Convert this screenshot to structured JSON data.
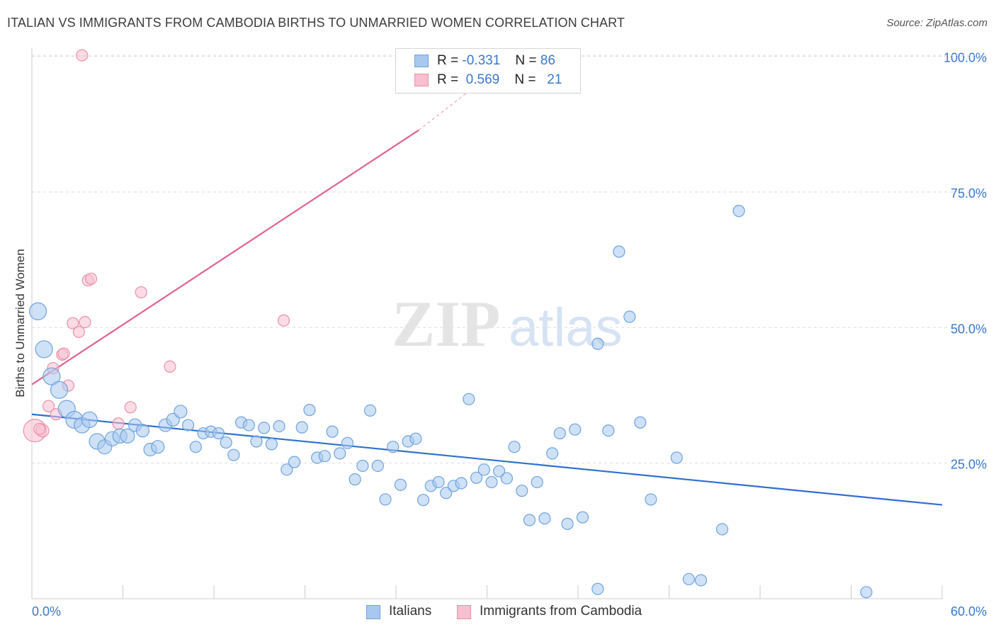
{
  "title": "ITALIAN VS IMMIGRANTS FROM CAMBODIA BIRTHS TO UNMARRIED WOMEN CORRELATION CHART",
  "source": "Source: ZipAtlas.com",
  "legend_top": [
    {
      "r_label": "R =",
      "r_value": "-0.331",
      "n_label": "N =",
      "n_value": "86"
    },
    {
      "r_label": "R =",
      "r_value": "0.569",
      "n_label": "N =",
      "n_value": "21"
    }
  ],
  "legend_bottom": [
    "Italians",
    "Immigrants from Cambodia"
  ],
  "colors": {
    "italians_fill": "#a8c8ef",
    "italians_stroke": "#6fa3dd",
    "italians_line": "#2f6fd0",
    "cambodia_fill": "#f7bfd0",
    "cambodia_stroke": "#eb8fab",
    "cambodia_line": "#e0638a",
    "axis_text": "#3a78c9",
    "grid": "#dddddd"
  },
  "chart_data": {
    "type": "scatter",
    "title": "ITALIAN VS IMMIGRANTS FROM CAMBODIA BIRTHS TO UNMARRIED WOMEN CORRELATION CHART",
    "xlabel": "",
    "ylabel": "Births to Unmarried Women",
    "xlim": [
      0,
      60
    ],
    "ylim": [
      0,
      102
    ],
    "x_tick_labels": [
      "0.0%",
      "60.0%"
    ],
    "y_ticks": [
      25,
      50,
      75,
      100
    ],
    "y_tick_labels": [
      "25.0%",
      "50.0%",
      "75.0%",
      "100.0%"
    ],
    "grid": true,
    "legend_position": "top-center",
    "series": [
      {
        "name": "Italians",
        "trend": {
          "x0": 0,
          "y0": 34.0,
          "x1": 60,
          "y1": 17.3
        },
        "points": [
          [
            0.4,
            53.0,
            12
          ],
          [
            0.8,
            46.0,
            12
          ],
          [
            1.3,
            41.0,
            12
          ],
          [
            1.8,
            38.5,
            12
          ],
          [
            2.3,
            35.0,
            12
          ],
          [
            2.8,
            33.0,
            12
          ],
          [
            3.3,
            32.0,
            11
          ],
          [
            3.8,
            33.0,
            11
          ],
          [
            4.3,
            29.0,
            11
          ],
          [
            4.8,
            28.0,
            10
          ],
          [
            5.3,
            29.5,
            10
          ],
          [
            5.8,
            30.0,
            10
          ],
          [
            6.3,
            30.0,
            10
          ],
          [
            6.8,
            32.0,
            9
          ],
          [
            7.3,
            31.0,
            9
          ],
          [
            7.8,
            27.5,
            9
          ],
          [
            8.3,
            28.0,
            9
          ],
          [
            8.8,
            32.0,
            9
          ],
          [
            9.3,
            33.0,
            9
          ],
          [
            9.8,
            34.5,
            9
          ],
          [
            10.3,
            32.0,
            8
          ],
          [
            10.8,
            28.0,
            8
          ],
          [
            11.3,
            30.5,
            8
          ],
          [
            11.8,
            30.8,
            8
          ],
          [
            12.3,
            30.5,
            8
          ],
          [
            12.8,
            28.8,
            8
          ],
          [
            13.3,
            26.5,
            8
          ],
          [
            13.8,
            32.5,
            8
          ],
          [
            14.3,
            32.0,
            8
          ],
          [
            14.8,
            29.0,
            8
          ],
          [
            15.3,
            31.5,
            8
          ],
          [
            15.8,
            28.5,
            8
          ],
          [
            16.3,
            31.8,
            8
          ],
          [
            16.8,
            23.8,
            8
          ],
          [
            17.3,
            25.2,
            8
          ],
          [
            17.8,
            31.6,
            8
          ],
          [
            18.3,
            34.8,
            8
          ],
          [
            18.8,
            26.0,
            8
          ],
          [
            19.3,
            26.3,
            8
          ],
          [
            19.8,
            30.8,
            8
          ],
          [
            20.3,
            26.8,
            8
          ],
          [
            20.8,
            28.7,
            8
          ],
          [
            21.3,
            22.0,
            8
          ],
          [
            21.8,
            24.5,
            8
          ],
          [
            22.3,
            34.7,
            8
          ],
          [
            22.8,
            24.5,
            8
          ],
          [
            23.3,
            18.3,
            8
          ],
          [
            23.8,
            28.0,
            8
          ],
          [
            24.3,
            21.0,
            8
          ],
          [
            24.8,
            29.0,
            8
          ],
          [
            25.3,
            29.5,
            8
          ],
          [
            25.8,
            18.2,
            8
          ],
          [
            26.3,
            20.8,
            8
          ],
          [
            26.8,
            21.5,
            8
          ],
          [
            27.3,
            19.5,
            8
          ],
          [
            27.8,
            20.8,
            8
          ],
          [
            28.3,
            21.3,
            8
          ],
          [
            28.8,
            36.8,
            8
          ],
          [
            29.3,
            22.3,
            8
          ],
          [
            29.8,
            23.8,
            8
          ],
          [
            30.3,
            21.5,
            8
          ],
          [
            30.8,
            23.5,
            8
          ],
          [
            31.3,
            22.2,
            8
          ],
          [
            31.8,
            28.0,
            8
          ],
          [
            32.3,
            19.9,
            8
          ],
          [
            32.8,
            14.5,
            8
          ],
          [
            33.3,
            21.5,
            8
          ],
          [
            33.8,
            14.8,
            8
          ],
          [
            34.3,
            26.8,
            8
          ],
          [
            34.8,
            30.5,
            8
          ],
          [
            35.3,
            13.8,
            8
          ],
          [
            35.8,
            31.2,
            8
          ],
          [
            36.3,
            15.0,
            8
          ],
          [
            37.3,
            1.8,
            8
          ],
          [
            38.0,
            31.0,
            8
          ],
          [
            38.7,
            64.0,
            8
          ],
          [
            39.4,
            52.0,
            8
          ],
          [
            40.1,
            32.5,
            8
          ],
          [
            40.8,
            18.3,
            8
          ],
          [
            42.5,
            26.0,
            8
          ],
          [
            43.3,
            3.6,
            8
          ],
          [
            44.1,
            3.4,
            8
          ],
          [
            45.5,
            12.8,
            8
          ],
          [
            46.6,
            71.5,
            8
          ],
          [
            37.3,
            47.0,
            8
          ],
          [
            55.0,
            1.2,
            8
          ]
        ]
      },
      {
        "name": "Immigrants from Cambodia",
        "trend": {
          "x0": 0,
          "y0": 39.5,
          "x1": 25.5,
          "y1": 86.4,
          "dashed_to": {
            "x": 29,
            "y": 94
          }
        },
        "points": [
          [
            0.2,
            31.0,
            16
          ],
          [
            0.7,
            31.0,
            9
          ],
          [
            1.1,
            35.5,
            8
          ],
          [
            1.4,
            42.5,
            8
          ],
          [
            1.6,
            34.0,
            8
          ],
          [
            2.0,
            45.0,
            8
          ],
          [
            2.4,
            39.3,
            8
          ],
          [
            2.7,
            50.8,
            8
          ],
          [
            3.1,
            49.2,
            8
          ],
          [
            3.5,
            51.0,
            8
          ],
          [
            3.7,
            58.7,
            8
          ],
          [
            3.9,
            59.0,
            8
          ],
          [
            5.7,
            32.3,
            8
          ],
          [
            6.5,
            35.3,
            8
          ],
          [
            7.2,
            56.5,
            8
          ],
          [
            9.1,
            42.8,
            8
          ],
          [
            16.6,
            51.3,
            8
          ],
          [
            3.3,
            100.2,
            8
          ],
          [
            24.6,
            100.2,
            8
          ],
          [
            2.1,
            45.2,
            8
          ],
          [
            0.5,
            31.3,
            8
          ]
        ]
      }
    ]
  }
}
